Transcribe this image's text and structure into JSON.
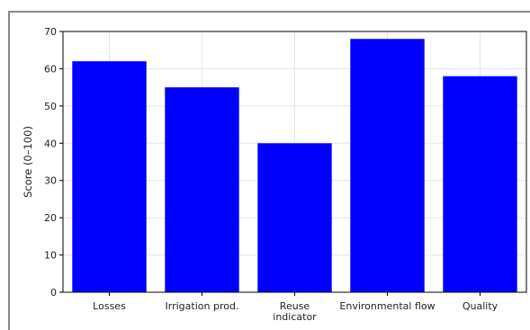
{
  "chart_data": {
    "type": "bar",
    "title": "",
    "xlabel": "",
    "ylabel": "Score (0–100)",
    "categories": [
      [
        "Losses"
      ],
      [
        "Irrigation prod."
      ],
      [
        "Reuse",
        "indicator"
      ],
      [
        "Environmental flow"
      ],
      [
        "Quality"
      ]
    ],
    "values": [
      62,
      55,
      40,
      68,
      58
    ],
    "ylim": [
      0,
      70
    ],
    "yticks": [
      0,
      10,
      20,
      30,
      40,
      50,
      60,
      70
    ],
    "grid": true,
    "colors": {
      "bar": "#0000ff",
      "grid": "#e6e6e6",
      "axis": "#000000"
    }
  }
}
